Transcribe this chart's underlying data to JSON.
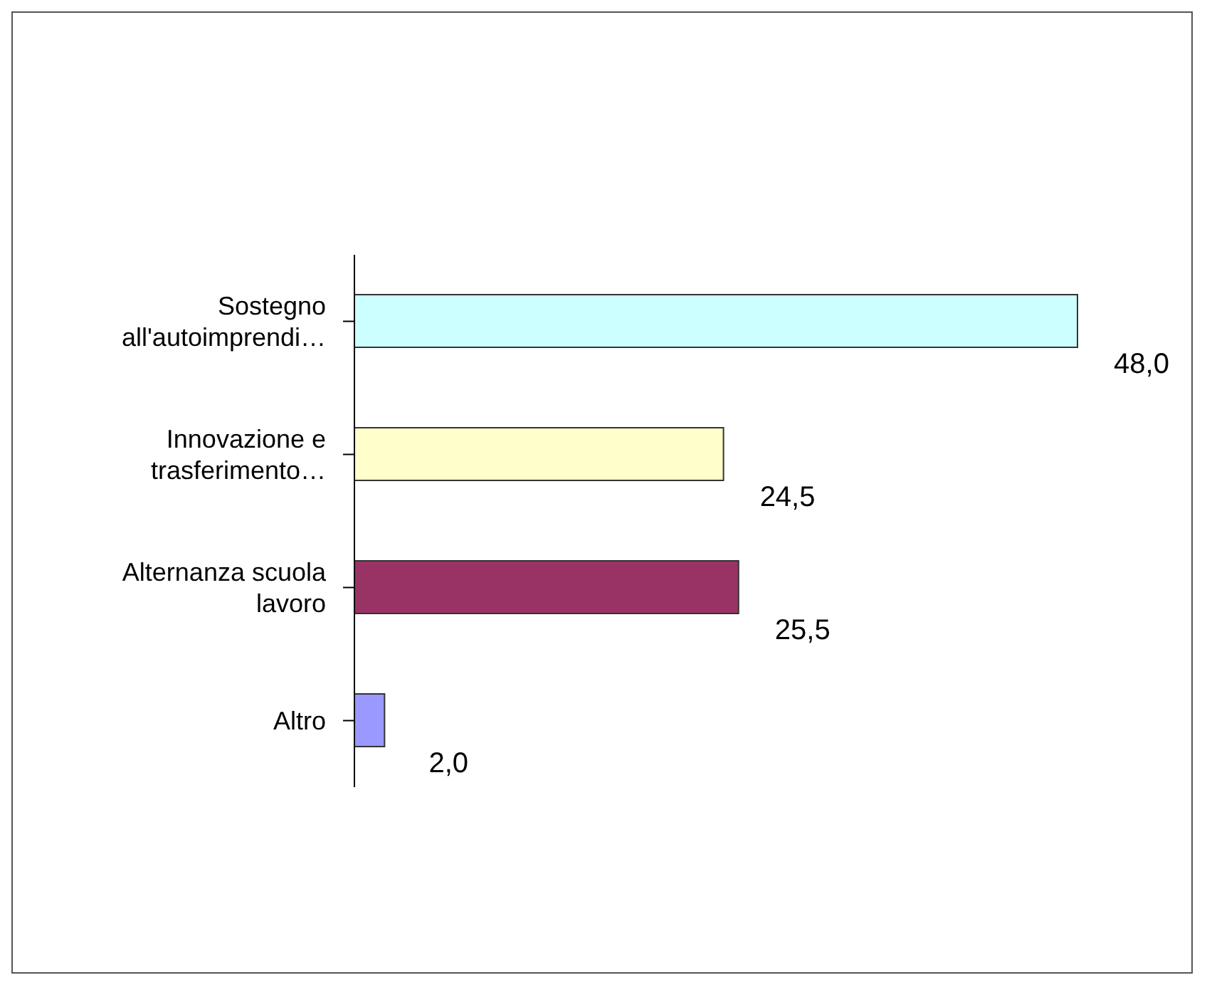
{
  "chart_data": {
    "type": "bar",
    "orientation": "horizontal",
    "categories": [
      "Sostegno all'autoimprendi…",
      "Innovazione e trasferimento…",
      "Alternanza scuola lavoro",
      "Altro"
    ],
    "values": [
      48.0,
      24.5,
      25.5,
      2.0
    ],
    "colors": [
      "#ccffff",
      "#ffffcc",
      "#993366",
      "#9999ff"
    ],
    "value_labels": [
      "48,0",
      "24,5",
      "25,5",
      "2,0"
    ],
    "grid": false,
    "legend": false
  }
}
